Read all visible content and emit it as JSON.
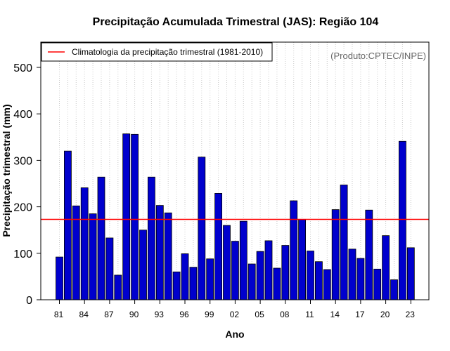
{
  "chart_data": {
    "type": "bar",
    "title": "Precipitação Acumulada Trimestral (JAS): Região 104",
    "xlabel": "Ano",
    "ylabel": "Precipitação trimestral (mm)",
    "credit": "(Produto:CPTEC/INPE)",
    "ylim": [
      0,
      560
    ],
    "yticks": [
      0,
      100,
      200,
      300,
      400,
      500
    ],
    "xtick_labels": [
      "81",
      "84",
      "87",
      "90",
      "93",
      "96",
      "99",
      "02",
      "05",
      "08",
      "11",
      "14",
      "17",
      "20",
      "23"
    ],
    "categories": [
      "1981",
      "1982",
      "1983",
      "1984",
      "1985",
      "1986",
      "1987",
      "1988",
      "1989",
      "1990",
      "1991",
      "1992",
      "1993",
      "1994",
      "1995",
      "1996",
      "1997",
      "1998",
      "1999",
      "2000",
      "2001",
      "2002",
      "2003",
      "2004",
      "2005",
      "2006",
      "2007",
      "2008",
      "2009",
      "2010",
      "2011",
      "2012",
      "2013",
      "2014",
      "2015",
      "2016",
      "2017",
      "2018",
      "2019",
      "2020",
      "2021",
      "2022",
      "2023"
    ],
    "values": [
      92,
      320,
      202,
      241,
      185,
      264,
      133,
      53,
      357,
      356,
      150,
      264,
      203,
      187,
      60,
      99,
      70,
      307,
      88,
      229,
      160,
      126,
      169,
      77,
      104,
      127,
      68,
      117,
      213,
      173,
      105,
      82,
      65,
      194,
      247,
      109,
      89,
      193,
      66,
      138,
      43,
      341,
      112
    ],
    "climatology": {
      "label": "Climatologia da precipitação trimestral (1981-2010)",
      "value": 173,
      "color": "#ff0000"
    },
    "bar_color": "#0000cd",
    "grid": "vertical-dotted",
    "legend_position": "top-left"
  }
}
